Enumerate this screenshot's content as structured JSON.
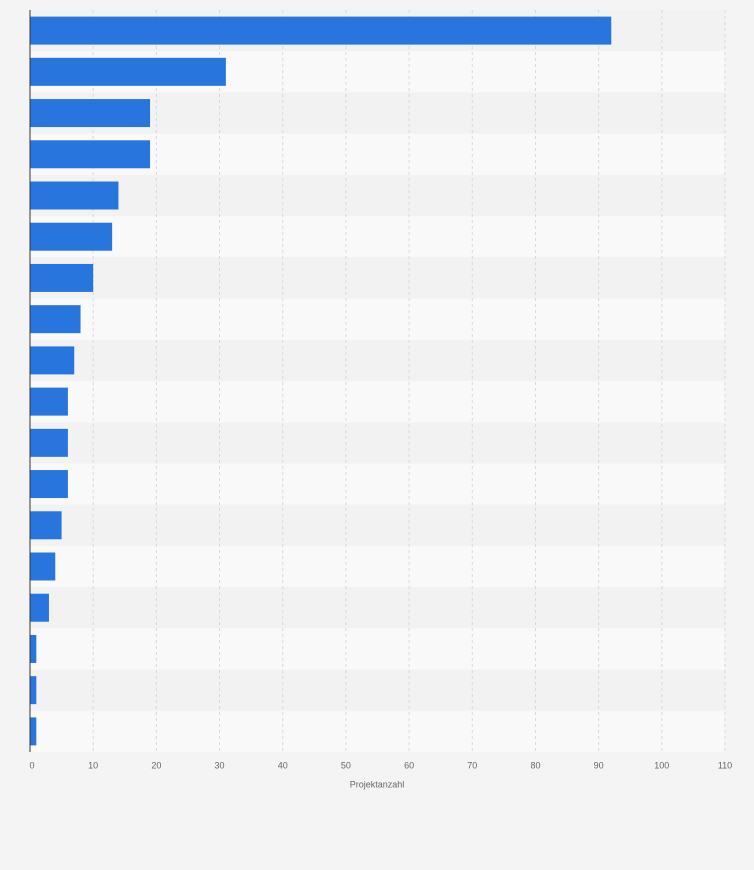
{
  "chart_data": {
    "type": "bar",
    "orientation": "horizontal",
    "categories": [
      null,
      null,
      null,
      null,
      null,
      null,
      null,
      null,
      null,
      null,
      null,
      null,
      null,
      null,
      null,
      null,
      null,
      null
    ],
    "values": [
      92,
      31,
      19,
      19,
      14,
      13,
      10,
      8,
      7,
      6,
      6,
      6,
      5,
      4,
      3,
      1,
      1,
      1
    ],
    "color": "#2876dd",
    "xlabel": "Projektanzahl",
    "xlim": [
      0,
      110
    ],
    "xticks": [
      0,
      10,
      20,
      30,
      40,
      50,
      60,
      70,
      80,
      90,
      100,
      110
    ],
    "grid": true
  }
}
